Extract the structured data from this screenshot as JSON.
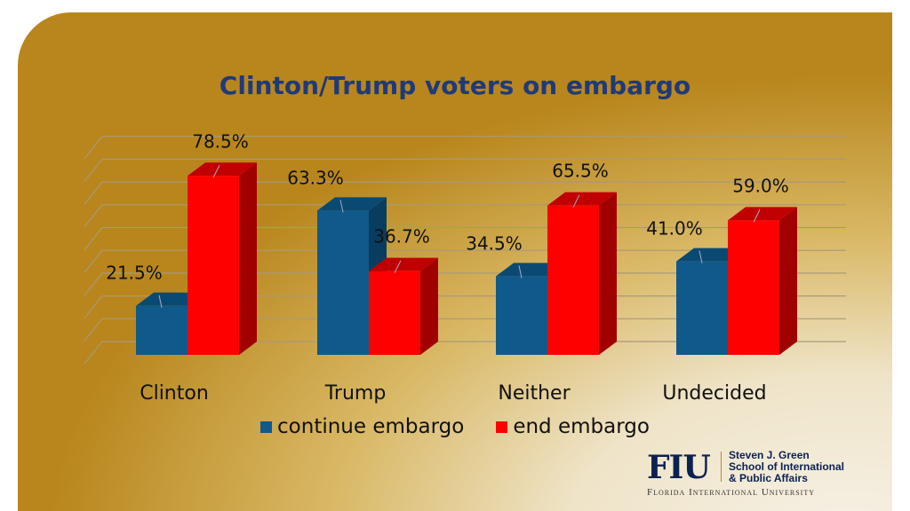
{
  "chart_data": {
    "type": "bar",
    "title": "Clinton/Trump voters on embargo",
    "categories": [
      "Clinton",
      "Trump",
      "Neither",
      "Undecided"
    ],
    "series": [
      {
        "name": "continue embargo",
        "color": "#0f5a8a",
        "values": [
          21.5,
          63.3,
          34.5,
          41.0
        ],
        "labels": [
          "21.5%",
          "63.3%",
          "34.5%",
          "41.0%"
        ]
      },
      {
        "name": "end embargo",
        "color": "#ff0000",
        "values": [
          78.5,
          36.7,
          65.5,
          59.0
        ],
        "labels": [
          "78.5%",
          "36.7%",
          "65.5%",
          "59.0%"
        ]
      }
    ],
    "ylim": [
      0,
      90
    ],
    "grid": true,
    "legend": "bottom"
  },
  "logo": {
    "mark": "FIU",
    "school": [
      "Steven J. Green",
      "School of International",
      "& Public Affairs"
    ],
    "university": "Florida International University"
  }
}
